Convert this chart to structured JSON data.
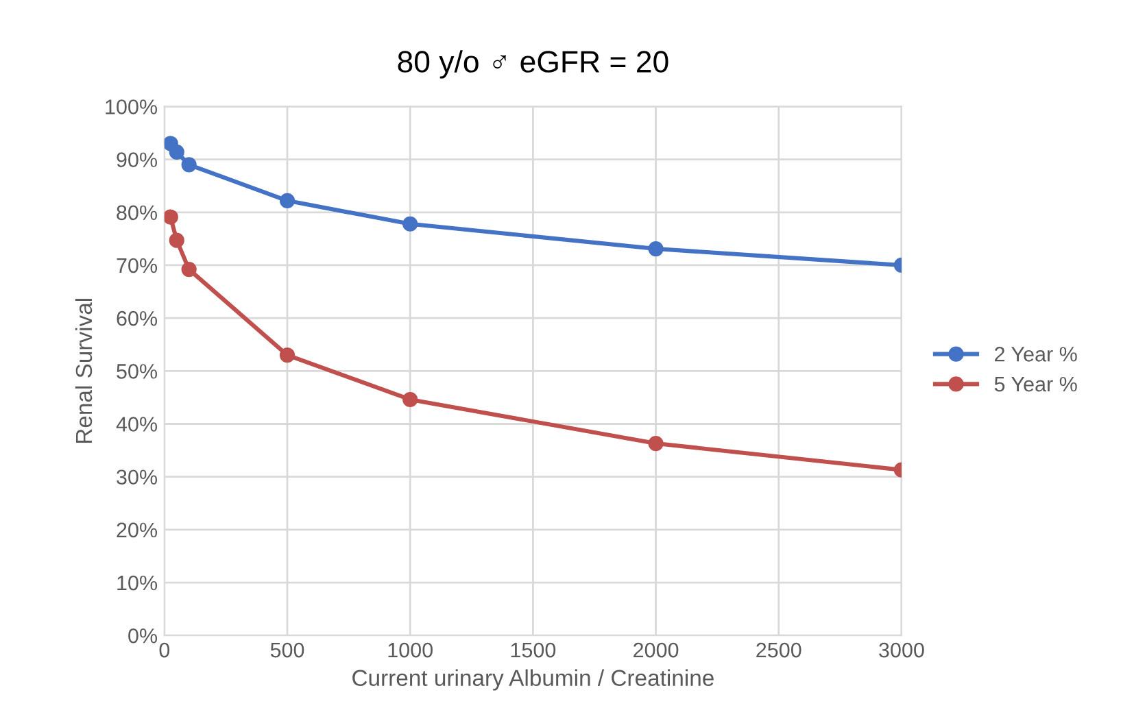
{
  "chart_data": {
    "type": "line",
    "title": "80 y/o ♂ eGFR = 20",
    "xlabel": "Current urinary Albumin / Creatinine",
    "ylabel": "Renal Survival",
    "x": [
      25,
      50,
      100,
      500,
      1000,
      2000,
      3000
    ],
    "series": [
      {
        "name": "2 Year %",
        "color": "#4472c4",
        "values": [
          93.0,
          91.4,
          89.0,
          82.2,
          77.8,
          73.1,
          70.0
        ]
      },
      {
        "name": "5 Year %",
        "color": "#c0504d",
        "values": [
          79.1,
          74.7,
          69.2,
          53.0,
          44.6,
          36.3,
          31.3
        ]
      }
    ],
    "xlim": [
      0,
      3000
    ],
    "xticks": [
      0,
      500,
      1000,
      1500,
      2000,
      2500,
      3000
    ],
    "ylim": [
      0,
      100
    ],
    "yticks": [
      {
        "value": 0,
        "label": "0%"
      },
      {
        "value": 10,
        "label": "10%"
      },
      {
        "value": 20,
        "label": "20%"
      },
      {
        "value": 30,
        "label": "30%"
      },
      {
        "value": 40,
        "label": "40%"
      },
      {
        "value": 50,
        "label": "50%"
      },
      {
        "value": 60,
        "label": "60%"
      },
      {
        "value": 70,
        "label": "70%"
      },
      {
        "value": 80,
        "label": "80%"
      },
      {
        "value": 90,
        "label": "90%"
      },
      {
        "value": 100,
        "label": "100%"
      }
    ],
    "grid": true,
    "legend": "right",
    "marker": "circle",
    "line_style": "solid"
  }
}
